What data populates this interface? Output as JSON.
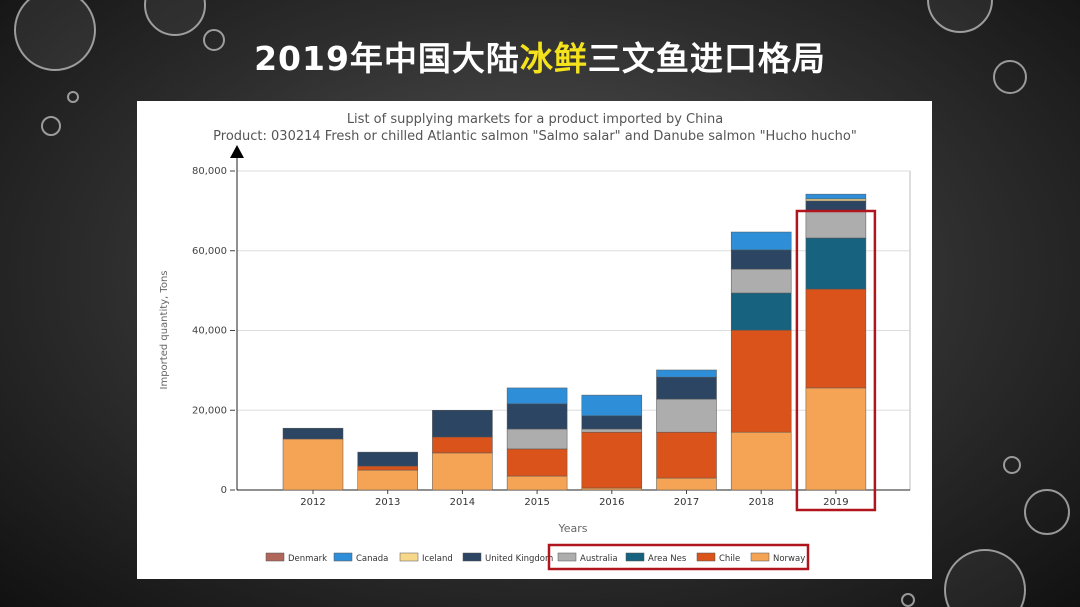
{
  "slide_title": [
    "2019年中国大陆",
    "冰鲜",
    "三文鱼进口格局"
  ],
  "chart_data": {
    "type": "stacked-bar",
    "title": "List of supplying markets for a product imported by China",
    "subtitle": "Product: 030214 Fresh or chilled Atlantic salmon \"Salmo salar\" and Danube salmon \"Hucho hucho\"",
    "x_label": "Years",
    "y_label": "Imported quantity, Tons",
    "categories": [
      "2012",
      "2013",
      "2014",
      "2015",
      "2016",
      "2017",
      "2018",
      "2019"
    ],
    "series": [
      {
        "name": "Denmark",
        "color": "#b0675a",
        "values": [
          0,
          0,
          0,
          0,
          0,
          0,
          0,
          0
        ]
      },
      {
        "name": "Canada",
        "color": "#2e8fd8",
        "values": [
          0,
          0,
          0,
          4000,
          5200,
          1800,
          4500,
          1200
        ]
      },
      {
        "name": "Iceland",
        "color": "#f7d88a",
        "values": [
          0,
          0,
          0,
          0,
          0,
          0,
          0,
          500
        ]
      },
      {
        "name": "United Kingdom",
        "color": "#2b4563",
        "values": [
          2700,
          3500,
          6700,
          6300,
          3300,
          5500,
          4800,
          2500
        ]
      },
      {
        "name": "Australia",
        "color": "#adadad",
        "values": [
          0,
          0,
          0,
          5000,
          800,
          8300,
          6000,
          6800
        ]
      },
      {
        "name": "Area Nes",
        "color": "#17627f",
        "values": [
          0,
          0,
          0,
          0,
          0,
          0,
          9300,
          12800
        ]
      },
      {
        "name": "Chile",
        "color": "#d9531a",
        "values": [
          0,
          1000,
          4000,
          6800,
          14000,
          11500,
          25600,
          24800
        ]
      },
      {
        "name": "Norway",
        "color": "#f5a355",
        "values": [
          12800,
          5000,
          9300,
          3500,
          500,
          3000,
          14500,
          25600
        ]
      }
    ],
    "ylim": [
      0,
      80000
    ],
    "yticks": [
      0,
      {
        "value": 20000,
        "label": "20,000"
      },
      {
        "value": 40000,
        "label": "40,000"
      },
      {
        "value": 60000,
        "label": "60,000"
      },
      {
        "value": 80000,
        "label": "80,000"
      }
    ],
    "grid": true
  }
}
